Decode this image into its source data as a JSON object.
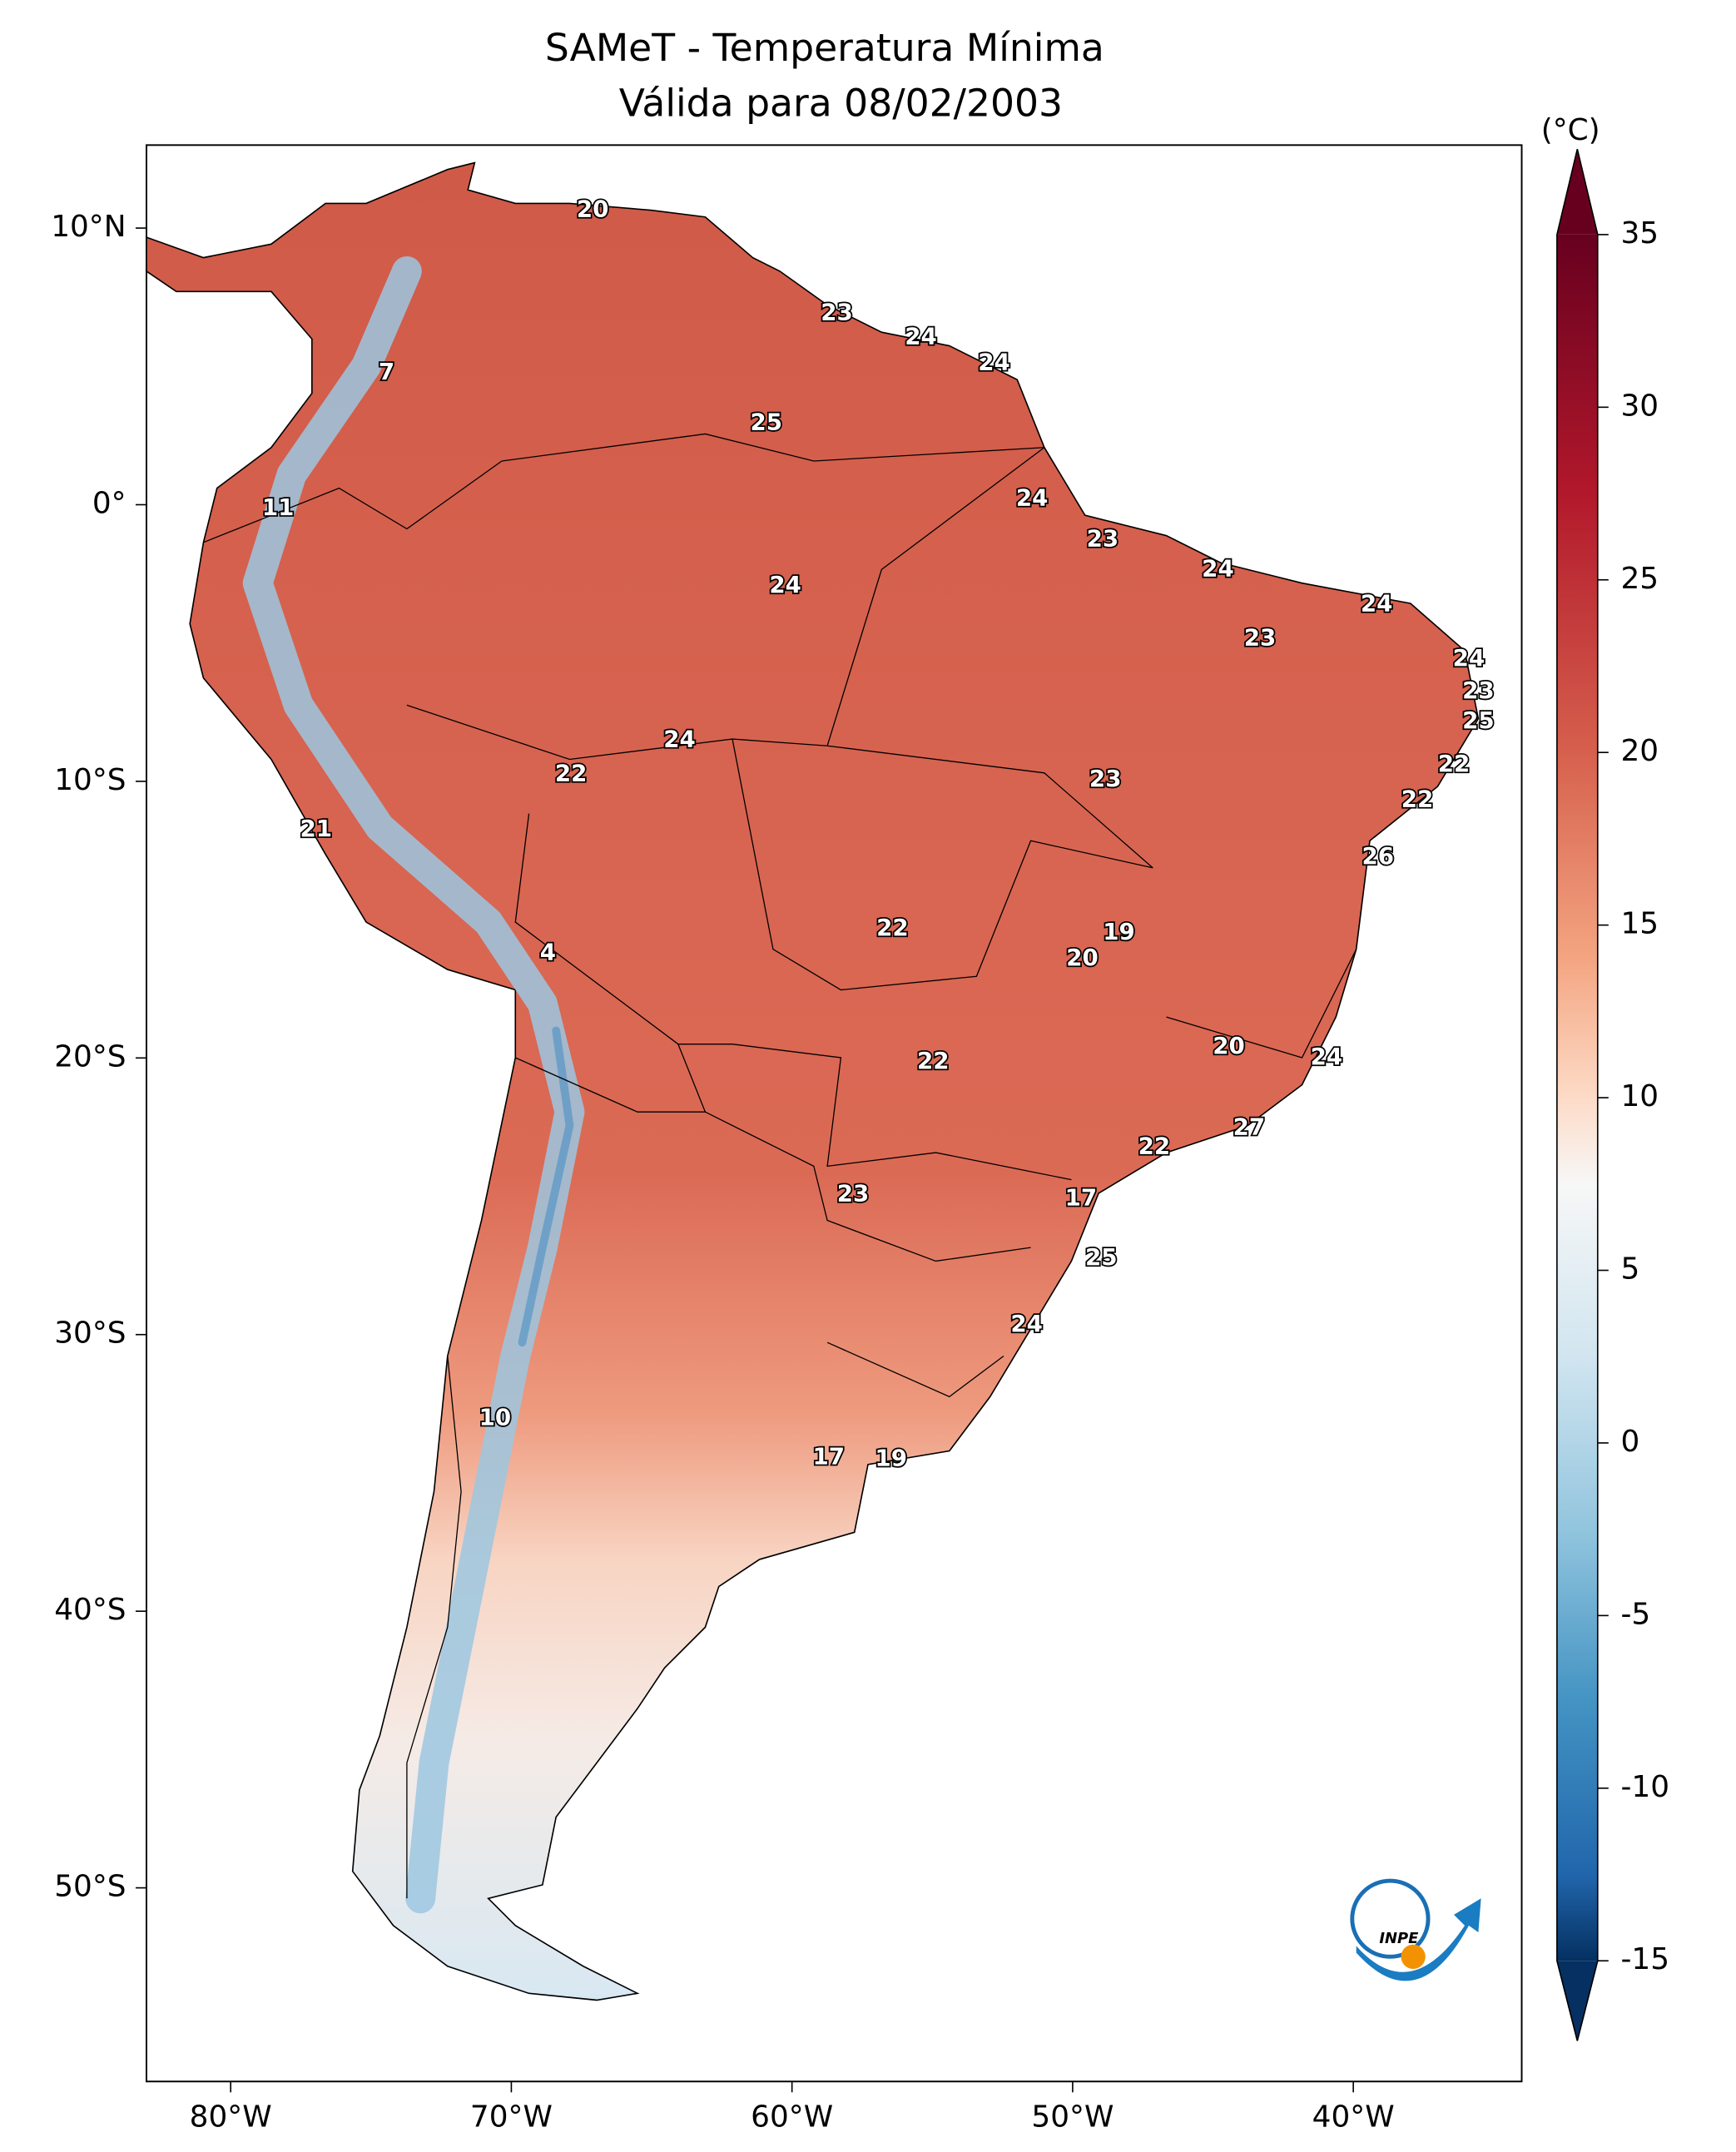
{
  "title": "SAMeT - Temperatura Mínima",
  "subtitle": "Válida para 08/02/2003",
  "map": {
    "xlim": [
      -83,
      -34
    ],
    "ylim": [
      -57,
      13
    ],
    "xticks": [
      {
        "value": -80,
        "label": "80°W"
      },
      {
        "value": -70,
        "label": "70°W"
      },
      {
        "value": -60,
        "label": "60°W"
      },
      {
        "value": -50,
        "label": "50°W"
      },
      {
        "value": -40,
        "label": "40°W"
      }
    ],
    "yticks": [
      {
        "value": 10,
        "label": "10°N"
      },
      {
        "value": 0,
        "label": "0°"
      },
      {
        "value": -10,
        "label": "10°S"
      },
      {
        "value": -20,
        "label": "20°S"
      },
      {
        "value": -30,
        "label": "30°S"
      },
      {
        "value": -40,
        "label": "40°S"
      },
      {
        "value": -50,
        "label": "50°S"
      }
    ],
    "station_values": [
      20,
      23,
      24,
      24,
      7,
      25,
      24,
      11,
      23,
      24,
      24,
      24,
      23,
      24,
      23,
      25,
      24,
      22,
      22,
      23,
      22,
      21,
      26,
      19,
      22,
      20,
      4,
      20,
      24,
      22,
      27,
      22,
      23,
      17,
      25,
      24,
      10,
      17,
      19
    ]
  },
  "colorbar": {
    "unit": "(°C)",
    "clim": [
      -15,
      35
    ],
    "ticks": [
      35,
      30,
      25,
      20,
      15,
      10,
      5,
      0,
      -5,
      -10,
      -15
    ]
  },
  "logo": "INPE"
}
